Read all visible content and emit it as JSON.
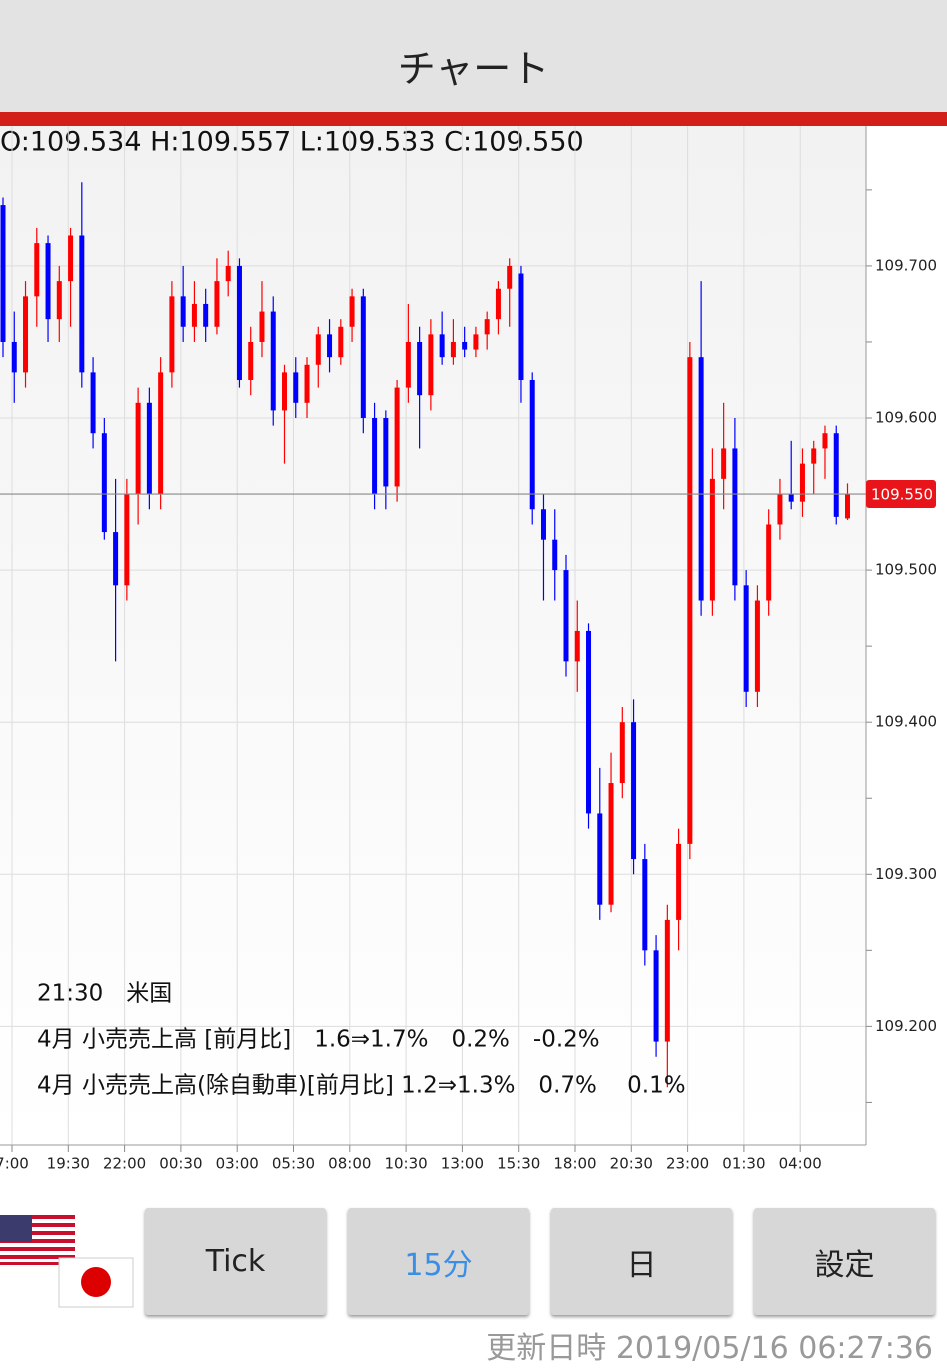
{
  "header": {
    "title": "チャート"
  },
  "ohlc_text": "O:109.534 H:109.557 L:109.533 C:109.550",
  "chart_data": {
    "type": "candlestick",
    "up_color": "#ff0000",
    "down_color": "#0000ff",
    "ylim": [
      109.122,
      109.792
    ],
    "yticks": [
      {
        "value": 109.2,
        "label": "109.200"
      },
      {
        "value": 109.3,
        "label": "109.300"
      },
      {
        "value": 109.4,
        "label": "109.400"
      },
      {
        "value": 109.5,
        "label": "109.500"
      },
      {
        "value": 109.6,
        "label": "109.600"
      },
      {
        "value": 109.7,
        "label": "109.700"
      }
    ],
    "yticks_minor": [
      109.15,
      109.25,
      109.35,
      109.45,
      109.55,
      109.65,
      109.75
    ],
    "current_price": {
      "value": 109.55,
      "label": "109.550"
    },
    "xtick_labels": [
      "7:00",
      "19:30",
      "22:00",
      "00:30",
      "03:00",
      "05:30",
      "08:00",
      "10:30",
      "13:00",
      "15:30",
      "18:00",
      "20:30",
      "23:00",
      "01:30",
      "04:00"
    ],
    "candles": [
      [
        109.74,
        109.745,
        109.64,
        109.65
      ],
      [
        109.65,
        109.67,
        109.61,
        109.63
      ],
      [
        109.63,
        109.69,
        109.62,
        109.68
      ],
      [
        109.68,
        109.725,
        109.66,
        109.715
      ],
      [
        109.715,
        109.72,
        109.65,
        109.665
      ],
      [
        109.665,
        109.7,
        109.65,
        109.69
      ],
      [
        109.69,
        109.725,
        109.66,
        109.72
      ],
      [
        109.72,
        109.755,
        109.62,
        109.63
      ],
      [
        109.63,
        109.64,
        109.58,
        109.59
      ],
      [
        109.59,
        109.6,
        109.52,
        109.525
      ],
      [
        109.525,
        109.56,
        109.44,
        109.49
      ],
      [
        109.49,
        109.56,
        109.48,
        109.55
      ],
      [
        109.55,
        109.62,
        109.53,
        109.61
      ],
      [
        109.61,
        109.62,
        109.54,
        109.55
      ],
      [
        109.55,
        109.64,
        109.54,
        109.63
      ],
      [
        109.63,
        109.69,
        109.62,
        109.68
      ],
      [
        109.68,
        109.7,
        109.65,
        109.66
      ],
      [
        109.66,
        109.69,
        109.65,
        109.675
      ],
      [
        109.675,
        109.685,
        109.65,
        109.66
      ],
      [
        109.66,
        109.705,
        109.655,
        109.69
      ],
      [
        109.69,
        109.71,
        109.68,
        109.7
      ],
      [
        109.7,
        109.705,
        109.62,
        109.625
      ],
      [
        109.625,
        109.66,
        109.615,
        109.65
      ],
      [
        109.65,
        109.69,
        109.64,
        109.67
      ],
      [
        109.67,
        109.68,
        109.595,
        109.605
      ],
      [
        109.605,
        109.635,
        109.57,
        109.63
      ],
      [
        109.63,
        109.64,
        109.6,
        109.61
      ],
      [
        109.61,
        109.64,
        109.6,
        109.635
      ],
      [
        109.635,
        109.66,
        109.62,
        109.655
      ],
      [
        109.655,
        109.665,
        109.63,
        109.64
      ],
      [
        109.64,
        109.665,
        109.635,
        109.66
      ],
      [
        109.66,
        109.685,
        109.65,
        109.68
      ],
      [
        109.68,
        109.685,
        109.59,
        109.6
      ],
      [
        109.6,
        109.61,
        109.54,
        109.55
      ],
      [
        109.6,
        109.605,
        109.54,
        109.555
      ],
      [
        109.555,
        109.625,
        109.545,
        109.62
      ],
      [
        109.62,
        109.675,
        109.61,
        109.65
      ],
      [
        109.65,
        109.66,
        109.58,
        109.615
      ],
      [
        109.615,
        109.665,
        109.605,
        109.655
      ],
      [
        109.655,
        109.67,
        109.635,
        109.64
      ],
      [
        109.64,
        109.665,
        109.635,
        109.65
      ],
      [
        109.65,
        109.66,
        109.64,
        109.645
      ],
      [
        109.645,
        109.66,
        109.64,
        109.655
      ],
      [
        109.655,
        109.67,
        109.645,
        109.665
      ],
      [
        109.665,
        109.69,
        109.655,
        109.685
      ],
      [
        109.685,
        109.705,
        109.66,
        109.7
      ],
      [
        109.695,
        109.7,
        109.61,
        109.625
      ],
      [
        109.625,
        109.63,
        109.53,
        109.54
      ],
      [
        109.54,
        109.55,
        109.48,
        109.52
      ],
      [
        109.52,
        109.54,
        109.48,
        109.5
      ],
      [
        109.5,
        109.51,
        109.43,
        109.44
      ],
      [
        109.44,
        109.48,
        109.42,
        109.46
      ],
      [
        109.46,
        109.465,
        109.33,
        109.34
      ],
      [
        109.34,
        109.37,
        109.27,
        109.28
      ],
      [
        109.28,
        109.38,
        109.275,
        109.36
      ],
      [
        109.36,
        109.41,
        109.35,
        109.4
      ],
      [
        109.4,
        109.415,
        109.3,
        109.31
      ],
      [
        109.31,
        109.32,
        109.24,
        109.25
      ],
      [
        109.25,
        109.26,
        109.18,
        109.19
      ],
      [
        109.19,
        109.28,
        109.16,
        109.27
      ],
      [
        109.27,
        109.33,
        109.25,
        109.32
      ],
      [
        109.32,
        109.65,
        109.31,
        109.64
      ],
      [
        109.64,
        109.69,
        109.47,
        109.48
      ],
      [
        109.48,
        109.58,
        109.47,
        109.56
      ],
      [
        109.56,
        109.61,
        109.54,
        109.58
      ],
      [
        109.58,
        109.6,
        109.48,
        109.49
      ],
      [
        109.49,
        109.5,
        109.41,
        109.42
      ],
      [
        109.42,
        109.49,
        109.41,
        109.48
      ],
      [
        109.48,
        109.54,
        109.47,
        109.53
      ],
      [
        109.53,
        109.56,
        109.52,
        109.55
      ],
      [
        109.55,
        109.585,
        109.54,
        109.545
      ],
      [
        109.545,
        109.58,
        109.535,
        109.57
      ],
      [
        109.57,
        109.585,
        109.55,
        109.58
      ],
      [
        109.58,
        109.595,
        109.56,
        109.59
      ],
      [
        109.59,
        109.595,
        109.53,
        109.535
      ],
      [
        109.534,
        109.557,
        109.533,
        109.55
      ]
    ]
  },
  "event": {
    "time": "21:30　米国",
    "lines": [
      "4月 小売売上高 [前月比]　1.6⇒1.7%　0.2%　-0.2%",
      "4月 小売売上高(除自動車)[前月比] 1.2⇒1.3%　0.7%　 0.1%"
    ]
  },
  "buttons": [
    "Tick",
    "15分",
    "日",
    "設定"
  ],
  "footer": "更新日時 2019/05/16 06:27:36"
}
